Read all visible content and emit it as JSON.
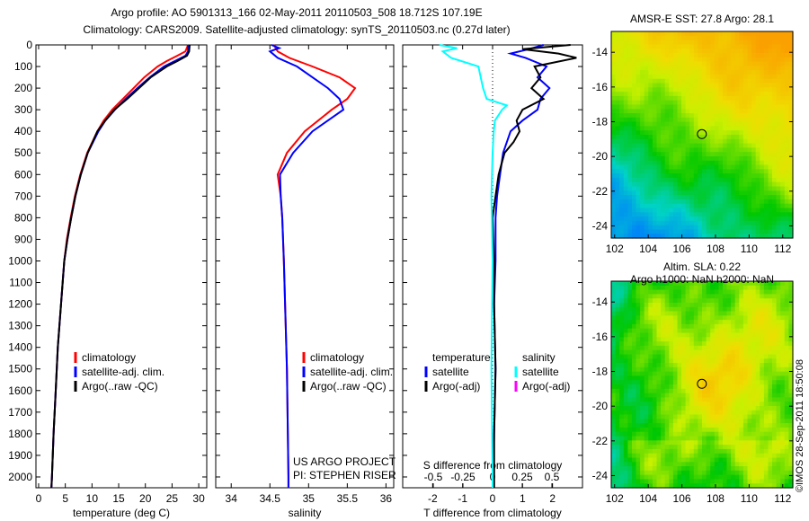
{
  "title_line1": "Argo profile: AO 5901313_166 02-May-2011 20110503_508 18.712S 107.19E",
  "title_line2": "Climatology: CARS2009. Satellite-adjusted climatology: synTS_20110503.nc (0.27d later)",
  "timestamp": "©IMOS 28-Sep-2011 18:50:08",
  "colors": {
    "climatology": "#ff0000",
    "satellite": "#0000ff",
    "argo": "#000000",
    "sal_satellite": "#00ffff",
    "sal_argo": "#ff00ff"
  },
  "chart_data": [
    {
      "type": "line",
      "xlabel": "temperature (deg C)",
      "ylabel": "",
      "xlim": [
        -0.5,
        31.5
      ],
      "ylim": [
        2050,
        0
      ],
      "xticks": [
        0,
        5,
        10,
        15,
        20,
        25,
        30
      ],
      "yticks": [
        0,
        100,
        200,
        300,
        400,
        500,
        600,
        700,
        800,
        900,
        1000,
        1100,
        1200,
        1300,
        1400,
        1500,
        1600,
        1700,
        1800,
        1900,
        2000
      ],
      "legend": [
        "climatology",
        "satellite-adj. clim.",
        "Argo(..raw -QC)"
      ],
      "legend_placement": "center-right",
      "series": [
        {
          "name": "climatology",
          "color": "#ff0000",
          "depth": [
            0,
            30,
            50,
            75,
            100,
            150,
            200,
            250,
            300,
            350,
            400,
            500,
            600,
            700,
            800,
            900,
            1000,
            1200,
            1400,
            1600,
            1800,
            2000,
            2050
          ],
          "values": [
            28,
            27.5,
            26,
            24,
            22.3,
            19.8,
            17.8,
            15.8,
            13.8,
            12.2,
            11,
            9.1,
            7.8,
            6.8,
            6,
            5.3,
            4.8,
            4.2,
            3.6,
            3.2,
            2.8,
            2.5,
            2.4
          ]
        },
        {
          "name": "satellite-adj. clim.",
          "color": "#0000ff",
          "depth": [
            0,
            30,
            50,
            75,
            100,
            150,
            200,
            250,
            300,
            350,
            400,
            500,
            600,
            700,
            800,
            900,
            1000,
            1200,
            1400,
            1600,
            1800,
            2000,
            2050
          ],
          "values": [
            28,
            28,
            27.5,
            25.5,
            23.5,
            20.8,
            18.5,
            16.3,
            14.3,
            12.5,
            11.2,
            9.2,
            7.9,
            6.9,
            6.1,
            5.4,
            4.8,
            4.2,
            3.6,
            3.2,
            2.8,
            2.5,
            2.4
          ]
        },
        {
          "name": "Argo(..raw -QC)",
          "color": "#000000",
          "depth": [
            0,
            30,
            50,
            75,
            100,
            150,
            200,
            250,
            300,
            350,
            400,
            500,
            600,
            700,
            800,
            900,
            1000,
            1200,
            1400,
            1600,
            1800,
            2000,
            2050
          ],
          "values": [
            28.3,
            28.2,
            27.8,
            26,
            24,
            21,
            18.8,
            16.6,
            14.2,
            12.5,
            11,
            9.2,
            7.9,
            6.9,
            6.1,
            5.4,
            4.8,
            4.2,
            3.6,
            3.2,
            2.8,
            2.5,
            2.4
          ]
        }
      ]
    },
    {
      "type": "line",
      "xlabel": "salinity",
      "xlim": [
        33.8,
        36.1
      ],
      "ylim": [
        2050,
        0
      ],
      "xticks": [
        34,
        34.5,
        35,
        35.5,
        36
      ],
      "legend": [
        "climatology",
        "satellite-adj. clim.",
        "Argo(..raw -QC)"
      ],
      "legend_placement": "center-right",
      "annotation": [
        "US ARGO PROJECT",
        "PI: STEPHEN RISER"
      ],
      "series": [
        {
          "name": "climatology",
          "color": "#ff0000",
          "depth": [
            0,
            30,
            60,
            100,
            150,
            200,
            250,
            300,
            400,
            500,
            600,
            700,
            800,
            1000,
            1500,
            2000,
            2050
          ],
          "values": [
            34.55,
            34.6,
            34.75,
            35.05,
            35.4,
            35.6,
            35.5,
            35.3,
            34.95,
            34.72,
            34.6,
            34.64,
            34.66,
            34.68,
            34.72,
            34.74,
            34.74
          ]
        },
        {
          "name": "satellite-adj. clim.",
          "color": "#0000ff",
          "depth": [
            0,
            15,
            30,
            60,
            100,
            150,
            200,
            250,
            300,
            400,
            500,
            600,
            700,
            800,
            1000,
            1500,
            2000,
            2050
          ],
          "values": [
            34.52,
            34.62,
            34.5,
            34.6,
            34.85,
            35.05,
            35.25,
            35.4,
            35.45,
            35.05,
            34.8,
            34.63,
            34.64,
            34.66,
            34.68,
            34.72,
            34.74,
            34.74
          ]
        }
      ]
    },
    {
      "type": "line",
      "xlabel": "T difference from climatology",
      "xlabel_top": "S difference from climatology",
      "xlim": [
        -3,
        3
      ],
      "ylim": [
        2050,
        0
      ],
      "xticks": [
        -2,
        -1,
        0,
        1,
        2
      ],
      "xticks_top": [
        -0.5,
        -0.25,
        0,
        0.25,
        0.5
      ],
      "legend_temperature": {
        "title": "temperature",
        "items": [
          "satellite",
          "Argo(-adj)"
        ]
      },
      "legend_salinity": {
        "title": "salinity",
        "items": [
          "satellite",
          "Argo(-adj)"
        ]
      },
      "series": [
        {
          "name": "temperature satellite",
          "color": "#0000ff",
          "axis": "T",
          "depth": [
            0,
            20,
            40,
            60,
            100,
            150,
            200,
            250,
            300,
            350,
            400,
            500,
            600,
            700,
            800,
            1000,
            1200,
            1500,
            1800,
            2000,
            2050
          ],
          "values": [
            1.7,
            1.2,
            0.6,
            1.1,
            1.8,
            1.5,
            1.9,
            1.6,
            1.5,
            1.0,
            0.6,
            0.35,
            0.25,
            0.15,
            0.1,
            0.1,
            0.05,
            0.1,
            0.05,
            0.02,
            0.02
          ]
        },
        {
          "name": "temperature Argo(-adj)",
          "color": "#000000",
          "axis": "T",
          "depth": [
            0,
            20,
            40,
            60,
            100,
            150,
            200,
            250,
            300,
            350,
            400,
            450,
            500,
            600,
            700,
            800,
            1000,
            1200,
            1500,
            1800,
            2000,
            2050
          ],
          "values": [
            2.6,
            1.0,
            2.2,
            2.8,
            1.4,
            1.6,
            1.3,
            1.7,
            1.0,
            0.8,
            0.9,
            0.7,
            0.4,
            0.2,
            0.1,
            0,
            0.05,
            0.05,
            0.1,
            0.05,
            0.05,
            0.05
          ]
        },
        {
          "name": "salinity satellite",
          "color": "#00ffff",
          "axis": "S",
          "depth": [
            0,
            15,
            30,
            60,
            100,
            150,
            200,
            250,
            280,
            300,
            350,
            400,
            500,
            700,
            1000,
            1500,
            2000,
            2050
          ],
          "values": [
            -0.45,
            -0.3,
            -0.42,
            -0.35,
            -0.12,
            -0.1,
            -0.08,
            -0.05,
            0.12,
            0.08,
            0.02,
            0.01,
            0,
            -0.01,
            0,
            -0.01,
            0,
            0
          ]
        }
      ]
    },
    {
      "type": "heatmap",
      "title": "AMSR-E SST: 27.8 Argo: 28.1",
      "xlim": [
        101.8,
        112.6
      ],
      "ylim": [
        -24.7,
        -12.8
      ],
      "xticks": [
        102,
        104,
        106,
        108,
        110,
        112
      ],
      "yticks": [
        -14,
        -16,
        -18,
        -20,
        -22,
        -24
      ],
      "marker": {
        "lon": 107.19,
        "lat": -18.712
      }
    },
    {
      "type": "heatmap",
      "title": "Altim. SLA: 0.22",
      "subtitle": "Argo h1000: NaN h2000: NaN",
      "xlim": [
        101.8,
        112.6
      ],
      "ylim": [
        -24.7,
        -12.8
      ],
      "xticks": [
        102,
        104,
        106,
        108,
        110,
        112
      ],
      "yticks": [
        -14,
        -16,
        -18,
        -20,
        -22,
        -24
      ],
      "marker": {
        "lon": 107.19,
        "lat": -18.712
      }
    }
  ]
}
